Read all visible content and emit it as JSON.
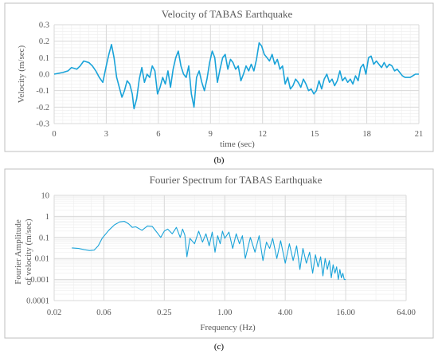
{
  "chart_data": [
    {
      "type": "line",
      "title": "Velocity of TABAS Earthquake",
      "xlabel": "time (sec)",
      "ylabel": "Velocity (m/sec)",
      "xlim": [
        0,
        21
      ],
      "ylim": [
        -0.3,
        0.3
      ],
      "xticks": [
        "0",
        "3",
        "6",
        "9",
        "12",
        "15",
        "18",
        "21"
      ],
      "yticks": [
        "0.3",
        "0.2",
        "0.1",
        "0.0",
        "-0.1",
        "-0.2",
        "-0.3"
      ],
      "panel_label": "(b)",
      "grid": true,
      "series": [
        {
          "color": "#1aa3d9",
          "x": [
            0,
            0.5,
            0.8,
            1.0,
            1.3,
            1.5,
            1.7,
            2.0,
            2.2,
            2.4,
            2.6,
            2.8,
            3.0,
            3.15,
            3.3,
            3.45,
            3.6,
            3.75,
            3.9,
            4.05,
            4.2,
            4.35,
            4.5,
            4.6,
            4.75,
            4.9,
            5.05,
            5.2,
            5.35,
            5.5,
            5.65,
            5.8,
            5.95,
            6.1,
            6.25,
            6.4,
            6.55,
            6.7,
            6.85,
            7.0,
            7.15,
            7.3,
            7.45,
            7.6,
            7.75,
            7.9,
            8.05,
            8.2,
            8.35,
            8.5,
            8.65,
            8.8,
            8.95,
            9.1,
            9.25,
            9.4,
            9.55,
            9.7,
            9.85,
            10.0,
            10.15,
            10.3,
            10.45,
            10.6,
            10.75,
            10.9,
            11.05,
            11.2,
            11.35,
            11.5,
            11.65,
            11.8,
            11.95,
            12.1,
            12.25,
            12.4,
            12.55,
            12.7,
            12.85,
            13.0,
            13.15,
            13.3,
            13.45,
            13.6,
            13.75,
            13.9,
            14.05,
            14.2,
            14.35,
            14.5,
            14.65,
            14.8,
            14.95,
            15.1,
            15.25,
            15.4,
            15.55,
            15.7,
            15.85,
            16.0,
            16.15,
            16.3,
            16.45,
            16.6,
            16.75,
            16.9,
            17.05,
            17.2,
            17.35,
            17.5,
            17.65,
            17.8,
            17.95,
            18.1,
            18.25,
            18.4,
            18.55,
            18.7,
            18.85,
            19.0,
            19.15,
            19.3,
            19.45,
            19.6,
            19.75,
            19.9,
            20.05,
            20.2,
            20.35,
            20.5,
            20.65,
            20.8,
            21.0
          ],
          "values": [
            0.0,
            0.01,
            0.02,
            0.04,
            0.03,
            0.05,
            0.08,
            0.07,
            0.05,
            0.02,
            -0.02,
            -0.05,
            0.05,
            0.12,
            0.18,
            0.1,
            -0.02,
            -0.08,
            -0.14,
            -0.1,
            -0.04,
            -0.06,
            -0.12,
            -0.21,
            -0.15,
            -0.03,
            0.04,
            -0.05,
            0.0,
            -0.02,
            0.05,
            0.02,
            -0.12,
            -0.08,
            -0.02,
            -0.06,
            0.02,
            -0.08,
            0.03,
            0.1,
            0.14,
            0.05,
            0.0,
            -0.02,
            0.05,
            -0.12,
            -0.2,
            -0.02,
            0.02,
            -0.05,
            -0.1,
            -0.03,
            0.07,
            0.14,
            0.1,
            -0.05,
            0.03,
            0.1,
            0.12,
            0.03,
            0.09,
            0.07,
            0.03,
            0.05,
            -0.04,
            0.0,
            0.05,
            0.02,
            0.06,
            0.02,
            0.09,
            0.19,
            0.17,
            0.12,
            0.1,
            0.08,
            0.12,
            0.06,
            0.09,
            0.03,
            0.05,
            -0.06,
            -0.02,
            -0.09,
            -0.07,
            -0.03,
            -0.05,
            -0.08,
            -0.03,
            -0.06,
            -0.1,
            -0.09,
            -0.12,
            -0.1,
            -0.04,
            -0.09,
            -0.03,
            0.0,
            -0.05,
            -0.03,
            -0.07,
            -0.04,
            0.02,
            -0.04,
            -0.02,
            -0.05,
            -0.03,
            -0.06,
            -0.01,
            -0.04,
            0.04,
            0.06,
            0.0,
            0.1,
            0.11,
            0.06,
            0.08,
            0.06,
            0.04,
            0.07,
            0.04,
            0.06,
            0.05,
            0.02,
            0.03,
            0.01,
            -0.01,
            -0.02,
            -0.02,
            -0.02,
            -0.01,
            0.0,
            0.0
          ]
        }
      ]
    },
    {
      "type": "line",
      "title": "Fourier Spectrum for TABAS Earthquake",
      "xlabel": "Frequency (Hz)",
      "ylabel": "Fourier Amplitude of velocity (m/sec)",
      "xscale": "log2",
      "yscale": "log10",
      "xlim": [
        0.02,
        64
      ],
      "ylim": [
        0.0001,
        10
      ],
      "xticks": [
        "0.02",
        "0.06",
        "0.25",
        "1.00",
        "4.00",
        "16.00",
        "64.00"
      ],
      "yticks": [
        "10",
        "1",
        "0.1",
        "0.01",
        "0.001",
        "0.0001"
      ],
      "panel_label": "(c)",
      "grid": true,
      "series": [
        {
          "color": "#1aa3d9",
          "x": [
            0.03,
            0.035,
            0.04,
            0.045,
            0.05,
            0.055,
            0.06,
            0.07,
            0.08,
            0.09,
            0.1,
            0.11,
            0.12,
            0.13,
            0.15,
            0.17,
            0.19,
            0.21,
            0.23,
            0.25,
            0.27,
            0.3,
            0.33,
            0.36,
            0.38,
            0.4,
            0.42,
            0.45,
            0.5,
            0.55,
            0.6,
            0.65,
            0.7,
            0.75,
            0.8,
            0.85,
            0.9,
            0.95,
            1.0,
            1.1,
            1.2,
            1.3,
            1.4,
            1.5,
            1.6,
            1.8,
            2.0,
            2.2,
            2.4,
            2.6,
            2.8,
            3.0,
            3.3,
            3.6,
            4.0,
            4.4,
            4.8,
            5.2,
            5.6,
            6.0,
            6.5,
            7.0,
            7.5,
            8.0,
            8.5,
            9.0,
            9.5,
            10,
            10.5,
            11,
            11.5,
            12,
            12.5,
            13,
            13.5,
            14,
            14.5,
            15,
            15.5,
            16
          ],
          "values": [
            0.032,
            0.03,
            0.026,
            0.024,
            0.025,
            0.04,
            0.09,
            0.22,
            0.4,
            0.55,
            0.58,
            0.45,
            0.3,
            0.32,
            0.22,
            0.35,
            0.33,
            0.18,
            0.1,
            0.2,
            0.25,
            0.15,
            0.3,
            0.1,
            0.25,
            0.13,
            0.012,
            0.09,
            0.05,
            0.2,
            0.06,
            0.15,
            0.04,
            0.18,
            0.02,
            0.12,
            0.05,
            0.2,
            0.09,
            0.18,
            0.03,
            0.15,
            0.05,
            0.12,
            0.01,
            0.1,
            0.02,
            0.12,
            0.008,
            0.06,
            0.03,
            0.09,
            0.01,
            0.07,
            0.006,
            0.05,
            0.008,
            0.04,
            0.003,
            0.03,
            0.006,
            0.02,
            0.002,
            0.015,
            0.004,
            0.012,
            0.0015,
            0.01,
            0.003,
            0.008,
            0.0012,
            0.005,
            0.002,
            0.004,
            0.001,
            0.003,
            0.0012,
            0.002,
            0.001,
            0.001
          ]
        }
      ]
    }
  ]
}
